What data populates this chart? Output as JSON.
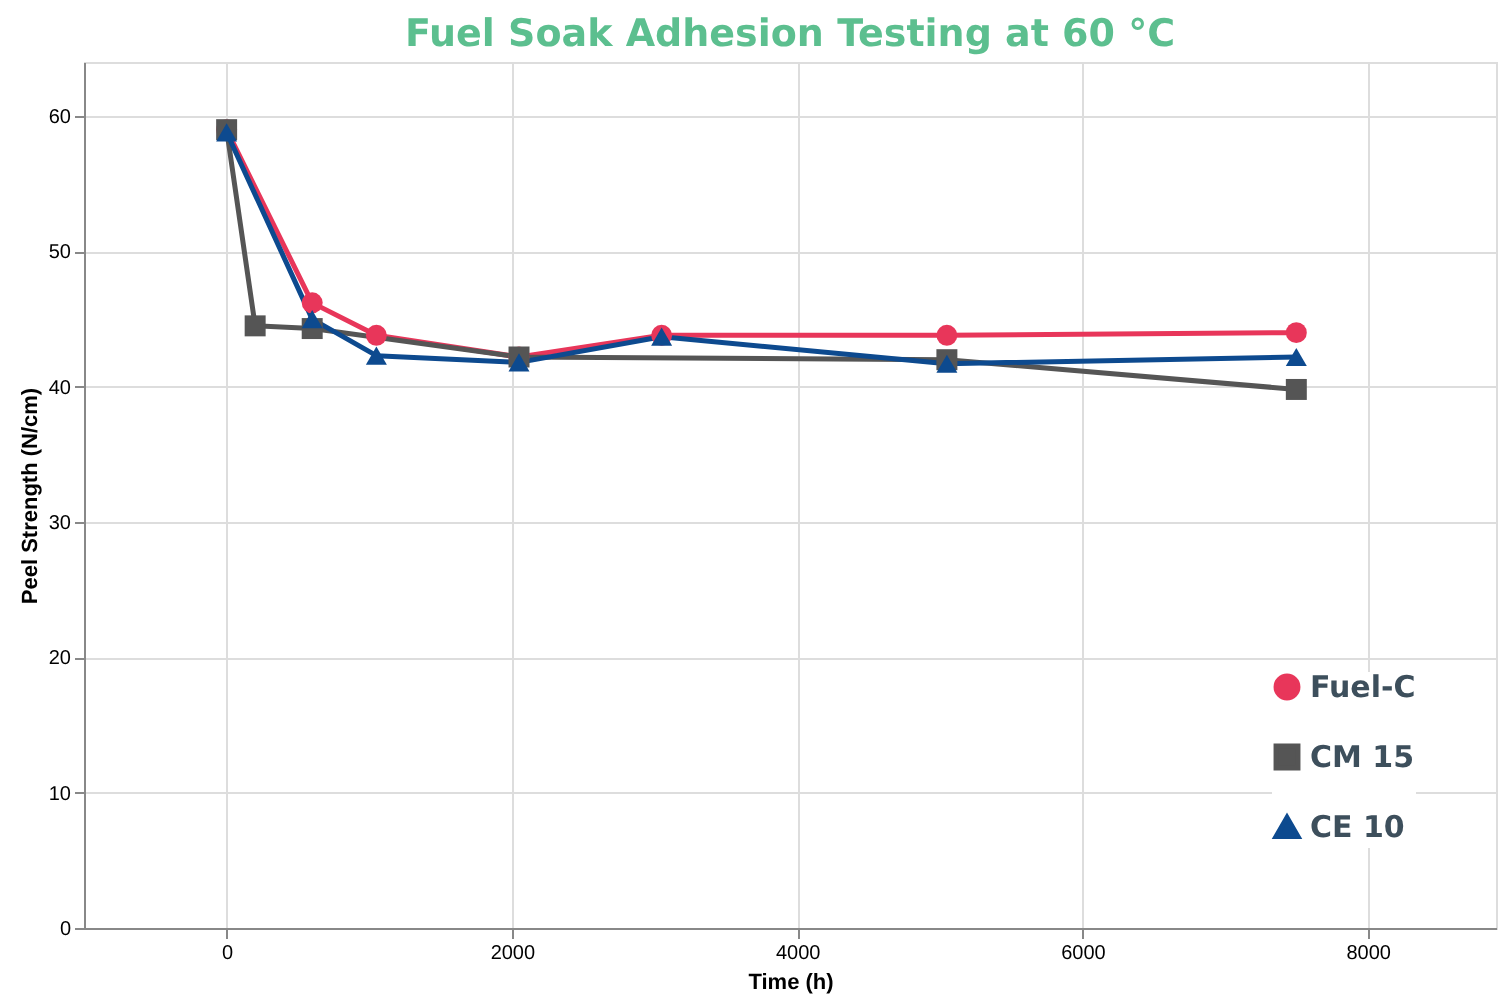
{
  "chart_data": {
    "type": "line",
    "title": "Fuel Soak Adhesion Testing at 60 °C",
    "xlabel": "Time (h)",
    "ylabel": "Peel Strength (N/cm)",
    "xlim": [
      -1000,
      8900
    ],
    "xticks": [
      0,
      2000,
      4000,
      6000,
      8000
    ],
    "ylim": [
      0,
      64
    ],
    "yticks": [
      0,
      10,
      20,
      30,
      40,
      50,
      60
    ],
    "grid": true,
    "legend": "bottom right",
    "series": [
      {
        "name": "Fuel-C",
        "color": "#e8365a",
        "marker": "circle",
        "x": [
          0,
          600,
          1050,
          2050,
          3050,
          5050,
          7500
        ],
        "values": [
          59,
          46.2,
          43.8,
          42.2,
          43.8,
          43.8,
          44
        ]
      },
      {
        "name": "CM 15",
        "color": "#555555",
        "marker": "square",
        "x": [
          0,
          200,
          600,
          2050,
          5050,
          7500
        ],
        "values": [
          59,
          44.5,
          44.3,
          42.2,
          42,
          39.8
        ]
      },
      {
        "name": "CE 10",
        "color": "#0d4a8f",
        "marker": "triangle",
        "x": [
          0,
          600,
          1050,
          2050,
          3050,
          5050,
          7500
        ],
        "values": [
          58.8,
          45,
          42.3,
          41.8,
          43.7,
          41.7,
          42.2
        ]
      }
    ]
  }
}
